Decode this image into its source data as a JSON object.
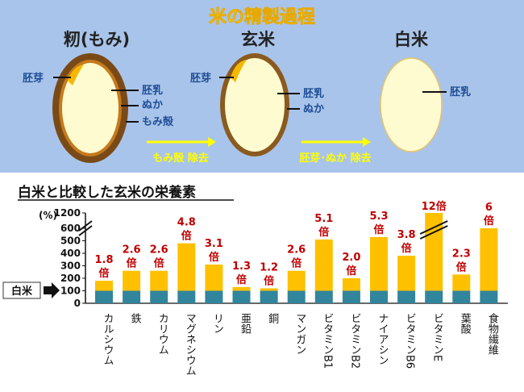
{
  "process": {
    "title": "米の精製過程",
    "stages": [
      {
        "name": "籾(もみ)",
        "labels": {
          "embryo": "胚芽",
          "endosperm": "胚乳",
          "bran": "ぬか",
          "husk": "もみ殻"
        }
      },
      {
        "name": "玄米",
        "labels": {
          "embryo": "胚芽",
          "endosperm": "胚乳",
          "bran": "ぬか"
        }
      },
      {
        "name": "白米",
        "labels": {
          "endosperm": "胚乳"
        }
      }
    ],
    "steps": [
      "もみ殻 除去",
      "胚芽･ぬか 除去"
    ],
    "colors": {
      "banner": "#a9c4ea",
      "title": "#ffff00",
      "text": "#1f4e96",
      "husk": "#7a4a16",
      "kernel": "#fffbd0",
      "embryo": "#f5b800"
    }
  },
  "chart_data": {
    "type": "bar",
    "title": "白米と比較した玄米の栄養素",
    "ylabel": "(%)",
    "yticks": [
      0,
      100,
      200,
      300,
      400,
      500,
      600,
      1200
    ],
    "ylim": [
      0,
      1200
    ],
    "axis_break": true,
    "baseline_label": "白米",
    "baseline_value": 100,
    "categories": [
      "カルシウム",
      "鉄",
      "カリウム",
      "マグネシウム",
      "リン",
      "亜鉛",
      "銅",
      "マンガン",
      "ビタミンB1",
      "ビタミンB2",
      "ナイアシン",
      "ビタミンB6",
      "ビタミンE",
      "葉酸",
      "食物繊維"
    ],
    "values": [
      180,
      260,
      260,
      480,
      310,
      130,
      120,
      260,
      510,
      200,
      530,
      380,
      1200,
      230,
      600
    ],
    "ratios": [
      "1.8",
      "2.6",
      "2.6",
      "4.8",
      "3.1",
      "1.3",
      "1.2",
      "2.6",
      "5.1",
      "2.0",
      "5.3",
      "3.8",
      "12",
      "2.3",
      "6"
    ],
    "unit": "倍",
    "colors": {
      "bar": "#ffc000",
      "baseline": "#31859c",
      "ratio": "#c00000"
    }
  }
}
